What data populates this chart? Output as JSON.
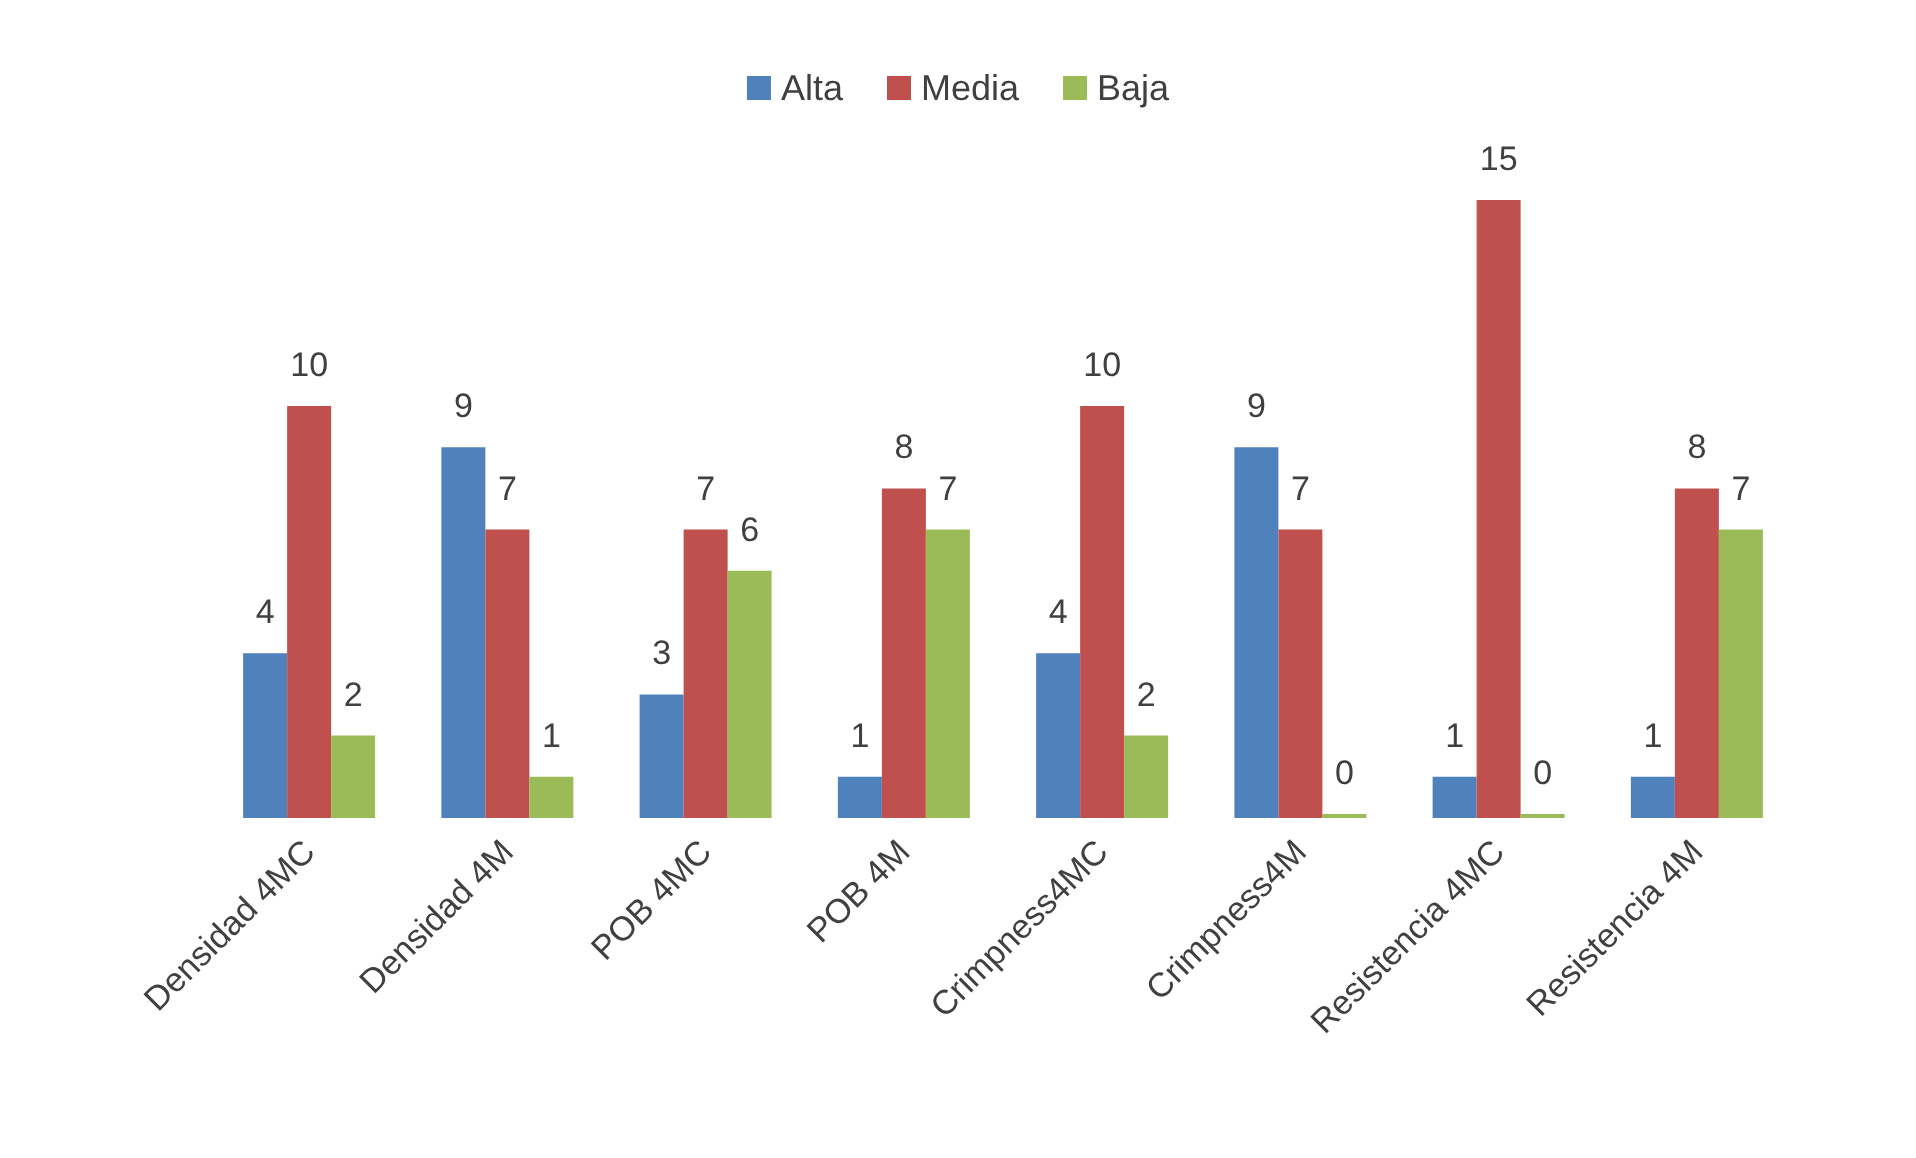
{
  "chart_data": {
    "type": "bar",
    "categories": [
      "Densidad 4MC",
      "Densidad 4M",
      "POB 4MC",
      "POB 4M",
      "Crimpness4MC",
      "Crimpness4M",
      "Resistencia 4MC",
      "Resistencia 4M"
    ],
    "series": [
      {
        "name": "Alta",
        "color": "#4f81bd",
        "values": [
          4,
          9,
          3,
          1,
          4,
          9,
          1,
          1
        ]
      },
      {
        "name": "Media",
        "color": "#c0504d",
        "values": [
          10,
          7,
          7,
          8,
          10,
          7,
          15,
          8
        ]
      },
      {
        "name": "Baja",
        "color": "#9bbb59",
        "values": [
          2,
          1,
          6,
          7,
          2,
          0,
          0,
          7
        ]
      }
    ],
    "data_labels": true,
    "legend": "top"
  }
}
